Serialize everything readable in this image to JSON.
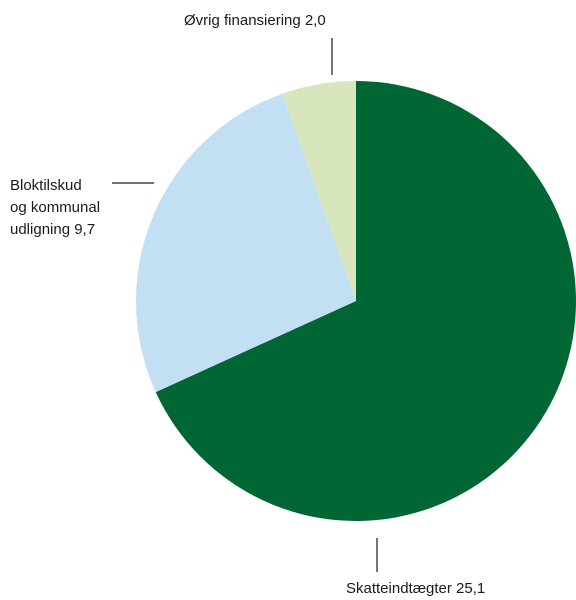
{
  "chart_data": {
    "type": "pie",
    "title": "",
    "slices": [
      {
        "label": "Skatteindtægter",
        "value": 25.1,
        "display": "Skatteindtægter 25,1",
        "color": "#006633"
      },
      {
        "label": "Bloktilskud og kommunal udligning",
        "value": 9.7,
        "display_lines": [
          "Bloktilskud",
          "og kommunal",
          "udligning 9,7"
        ],
        "color": "#c2dff4"
      },
      {
        "label": "Øvrig finansiering",
        "value": 2.0,
        "display": "Øvrig finansiering 2,0",
        "color": "#d7e6bc"
      }
    ]
  }
}
